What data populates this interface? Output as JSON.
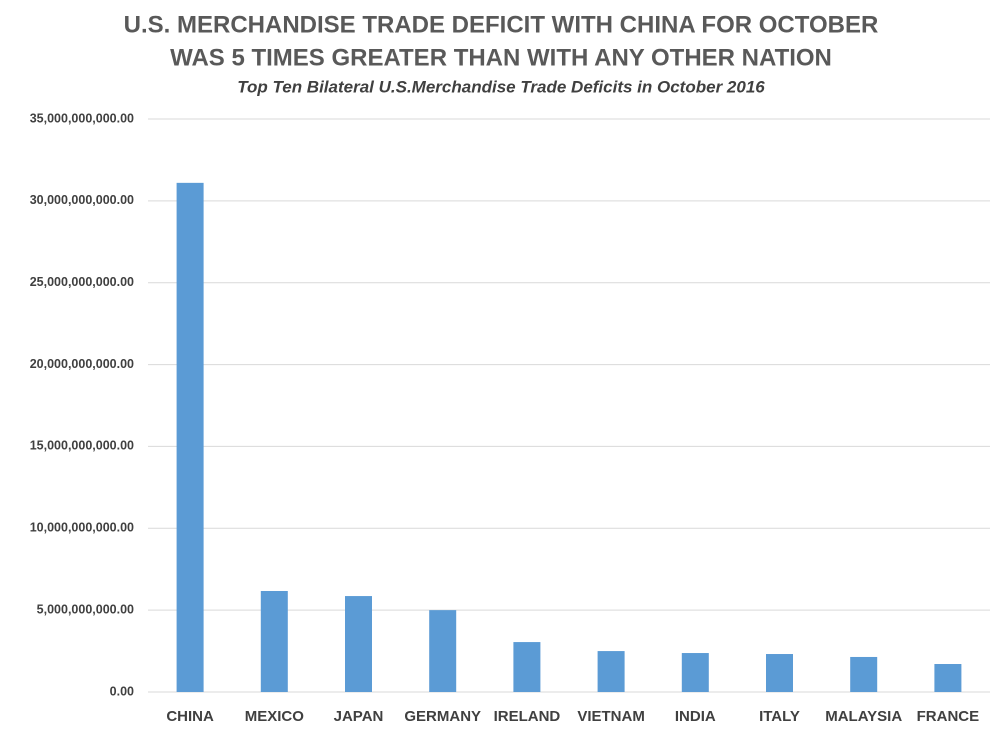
{
  "chart_data": {
    "type": "bar",
    "title": [
      "U.S. MERCHANDISE TRADE DEFICIT WITH CHINA FOR OCTOBER",
      "WAS 5 TIMES GREATER THAN WITH ANY OTHER NATION"
    ],
    "subtitle": "Top Ten Bilateral U.S.Merchandise Trade Deficits in October 2016",
    "categories": [
      "CHINA",
      "MEXICO",
      "JAPAN",
      "GERMANY",
      "IRELAND",
      "VIETNAM",
      "INDIA",
      "ITALY",
      "MALAYSIA",
      "FRANCE"
    ],
    "values": [
      31100000000,
      6170000000,
      5860000000,
      5000000000,
      3050000000,
      2500000000,
      2380000000,
      2320000000,
      2140000000,
      1710000000
    ],
    "color": "#5b9bd5",
    "ylim": [
      0,
      35000000000
    ],
    "yticks": [
      {
        "value": 0,
        "label": "0.00"
      },
      {
        "value": 5000000000,
        "label": "5,000,000,000.00"
      },
      {
        "value": 10000000000,
        "label": "10,000,000,000.00"
      },
      {
        "value": 15000000000,
        "label": "15,000,000,000.00"
      },
      {
        "value": 20000000000,
        "label": "20,000,000,000.00"
      },
      {
        "value": 25000000000,
        "label": "25,000,000,000.00"
      },
      {
        "value": 30000000000,
        "label": "30,000,000,000.00"
      },
      {
        "value": 35000000000,
        "label": "35,000,000,000.00"
      }
    ],
    "grid": true
  }
}
